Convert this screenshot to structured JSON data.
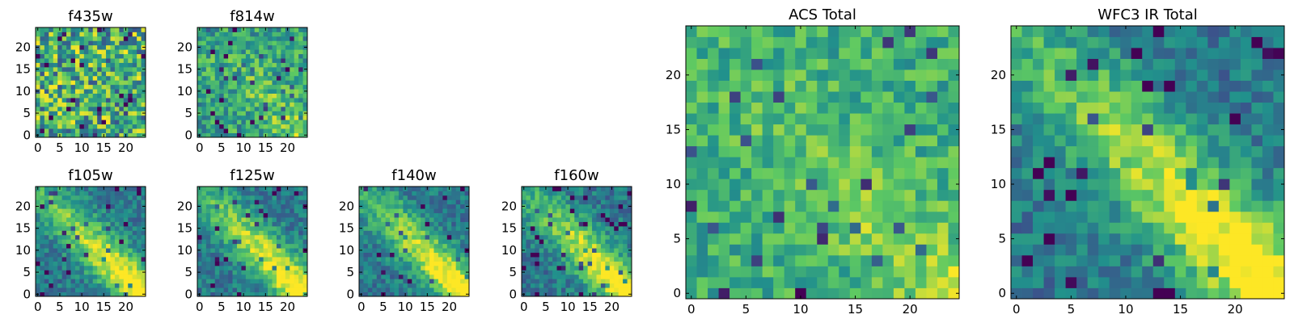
{
  "chart_data": [
    {
      "type": "heatmap",
      "title": "f435w",
      "size": 25,
      "x_ticks": [
        0,
        5,
        10,
        15,
        20
      ],
      "y_ticks": [
        0,
        5,
        10,
        15,
        20
      ],
      "pattern": "noise",
      "seed": 11
    },
    {
      "type": "heatmap",
      "title": "f814w",
      "size": 25,
      "x_ticks": [
        0,
        5,
        10,
        15,
        20
      ],
      "y_ticks": [
        0,
        5,
        10,
        15,
        20
      ],
      "pattern": "noise-diag",
      "seed": 23
    },
    {
      "type": "heatmap",
      "title": "f105w",
      "size": 25,
      "x_ticks": [
        0,
        5,
        10,
        15,
        20
      ],
      "y_ticks": [
        0,
        5,
        10,
        15,
        20
      ],
      "pattern": "diag",
      "seed": 37
    },
    {
      "type": "heatmap",
      "title": "f125w",
      "size": 25,
      "x_ticks": [
        0,
        5,
        10,
        15,
        20
      ],
      "y_ticks": [
        0,
        5,
        10,
        15,
        20
      ],
      "pattern": "diag",
      "seed": 41
    },
    {
      "type": "heatmap",
      "title": "f140w",
      "size": 25,
      "x_ticks": [
        0,
        5,
        10,
        15,
        20
      ],
      "y_ticks": [
        0,
        5,
        10,
        15,
        20
      ],
      "pattern": "diag",
      "seed": 53
    },
    {
      "type": "heatmap",
      "title": "f160w",
      "size": 25,
      "x_ticks": [
        0,
        5,
        10,
        15,
        20
      ],
      "y_ticks": [
        0,
        5,
        10,
        15,
        20
      ],
      "pattern": "diag",
      "seed": 67
    },
    {
      "type": "heatmap",
      "title": "ACS Total",
      "size": 25,
      "x_ticks": [
        0,
        5,
        10,
        15,
        20
      ],
      "y_ticks": [
        0,
        5,
        10,
        15,
        20
      ],
      "pattern": "acs",
      "seed": 79
    },
    {
      "type": "heatmap",
      "title": "WFC3 IR Total",
      "size": 25,
      "x_ticks": [
        0,
        5,
        10,
        15,
        20
      ],
      "y_ticks": [
        0,
        5,
        10,
        15,
        20
      ],
      "pattern": "diag",
      "seed": 97
    }
  ],
  "colormap": [
    "#440154",
    "#3b528b",
    "#21918c",
    "#5ec962",
    "#fde725"
  ]
}
